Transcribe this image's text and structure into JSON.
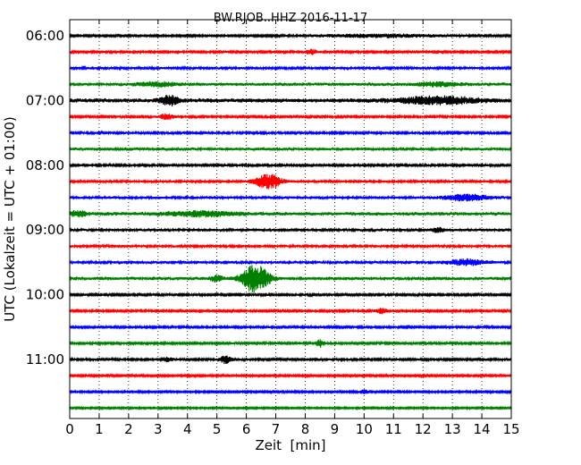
{
  "chart_data": {
    "type": "line",
    "title": "BW.RJOB..HHZ 2016-11-17",
    "xlabel": "Zeit  [min]",
    "ylabel": "UTC (Lokalzeit = UTC + 01:00)",
    "xlim": [
      0,
      15
    ],
    "x_ticks": [
      "0",
      "1",
      "2",
      "3",
      "4",
      "5",
      "6",
      "7",
      "8",
      "9",
      "10",
      "11",
      "12",
      "13",
      "14",
      "15"
    ],
    "y_ticks": [
      "06:00",
      "07:00",
      "08:00",
      "09:00",
      "10:00",
      "11:00"
    ],
    "y_tick_trace_index": [
      0,
      4,
      8,
      12,
      16,
      20
    ],
    "grid": "vertical dotted at each minute",
    "colors": [
      "#000000",
      "#ff0000",
      "#0000ff",
      "#008000"
    ],
    "series": [
      {
        "start": "06:00",
        "color": "#000000",
        "amplitude": 0.13,
        "events": [
          {
            "t": 10.5,
            "amp": 0.25,
            "dur": 4.5
          }
        ]
      },
      {
        "start": "06:15",
        "color": "#ff0000",
        "amplitude": 0.16,
        "events": [
          {
            "t": 8.2,
            "amp": 0.35,
            "dur": 0.4
          }
        ]
      },
      {
        "start": "06:30",
        "color": "#0000ff",
        "amplitude": 0.18,
        "events": []
      },
      {
        "start": "06:45",
        "color": "#008000",
        "amplitude": 0.22,
        "events": [
          {
            "t": 3.0,
            "amp": 0.3,
            "dur": 1.5
          },
          {
            "t": 12.5,
            "amp": 0.3,
            "dur": 1.5
          }
        ]
      },
      {
        "start": "07:00",
        "color": "#000000",
        "amplitude": 0.3,
        "events": [
          {
            "t": 3.4,
            "amp": 0.7,
            "dur": 0.6
          },
          {
            "t": 12.5,
            "amp": 0.55,
            "dur": 2.5
          }
        ]
      },
      {
        "start": "07:15",
        "color": "#ff0000",
        "amplitude": 0.16,
        "events": [
          {
            "t": 3.3,
            "amp": 0.45,
            "dur": 0.5
          }
        ]
      },
      {
        "start": "07:30",
        "color": "#0000ff",
        "amplitude": 0.17,
        "events": []
      },
      {
        "start": "07:45",
        "color": "#008000",
        "amplitude": 0.22,
        "events": []
      },
      {
        "start": "08:00",
        "color": "#000000",
        "amplitude": 0.16,
        "events": []
      },
      {
        "start": "08:15",
        "color": "#ff0000",
        "amplitude": 0.18,
        "events": [
          {
            "t": 6.75,
            "amp": 1.1,
            "dur": 0.9
          }
        ]
      },
      {
        "start": "08:30",
        "color": "#0000ff",
        "amplitude": 0.2,
        "events": [
          {
            "t": 13.5,
            "amp": 0.45,
            "dur": 1.5
          }
        ]
      },
      {
        "start": "08:45",
        "color": "#008000",
        "amplitude": 0.25,
        "events": [
          {
            "t": 0.3,
            "amp": 0.45,
            "dur": 0.5
          },
          {
            "t": 4.5,
            "amp": 0.35,
            "dur": 2.5
          }
        ]
      },
      {
        "start": "09:00",
        "color": "#000000",
        "amplitude": 0.2,
        "events": [
          {
            "t": 12.5,
            "amp": 0.35,
            "dur": 0.4
          }
        ]
      },
      {
        "start": "09:15",
        "color": "#ff0000",
        "amplitude": 0.18,
        "events": []
      },
      {
        "start": "09:30",
        "color": "#0000ff",
        "amplitude": 0.2,
        "events": [
          {
            "t": 13.5,
            "amp": 0.45,
            "dur": 1.2
          }
        ]
      },
      {
        "start": "09:45",
        "color": "#008000",
        "amplitude": 0.22,
        "events": [
          {
            "t": 6.3,
            "amp": 2.2,
            "dur": 0.9
          },
          {
            "t": 5.0,
            "amp": 0.5,
            "dur": 0.4
          }
        ]
      },
      {
        "start": "10:00",
        "color": "#000000",
        "amplitude": 0.16,
        "events": []
      },
      {
        "start": "10:15",
        "color": "#ff0000",
        "amplitude": 0.16,
        "events": [
          {
            "t": 10.6,
            "amp": 0.35,
            "dur": 0.4
          }
        ]
      },
      {
        "start": "10:30",
        "color": "#0000ff",
        "amplitude": 0.16,
        "events": []
      },
      {
        "start": "10:45",
        "color": "#008000",
        "amplitude": 0.16,
        "events": [
          {
            "t": 8.5,
            "amp": 0.55,
            "dur": 0.3
          }
        ]
      },
      {
        "start": "11:00",
        "color": "#000000",
        "amplitude": 0.16,
        "events": [
          {
            "t": 5.3,
            "amp": 0.6,
            "dur": 0.4
          },
          {
            "t": 3.3,
            "amp": 0.3,
            "dur": 0.5
          }
        ]
      },
      {
        "start": "11:15",
        "color": "#ff0000",
        "amplitude": 0.14,
        "events": []
      },
      {
        "start": "11:30",
        "color": "#0000ff",
        "amplitude": 0.13,
        "events": [
          {
            "t": 10.0,
            "amp": 0.3,
            "dur": 0.3
          }
        ]
      },
      {
        "start": "11:45",
        "color": "#008000",
        "amplitude": 0.12,
        "events": []
      }
    ]
  }
}
